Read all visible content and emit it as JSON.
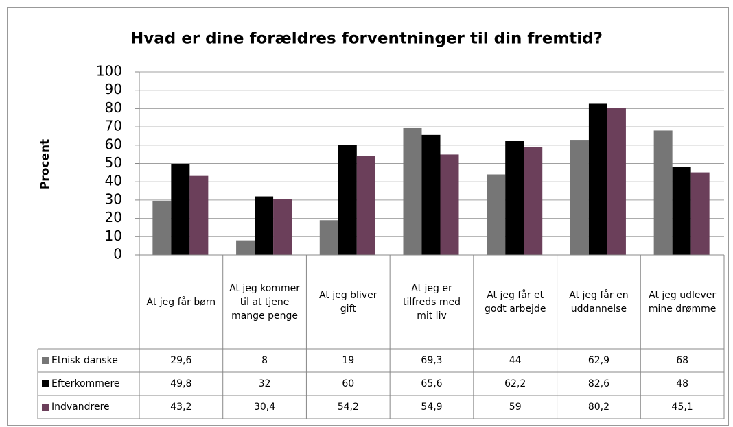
{
  "chart_data": {
    "type": "bar",
    "title": "Hvad er dine forældres forventninger til din fremtid?",
    "y_label": "Procent",
    "categories": [
      "At jeg får børn",
      "At jeg kommer til at tjene mange penge",
      "At jeg bliver gift",
      "At jeg er tilfreds med mit liv",
      "At jeg får et godt arbejde",
      "At jeg får en uddannelse",
      "At jeg udlever mine drømme"
    ],
    "series": [
      {
        "name": "Etnisk danske",
        "color": "#767676",
        "values": [
          29.6,
          8,
          19,
          69.3,
          44,
          62.9,
          68
        ],
        "value_labels": [
          "29,6",
          "8",
          "19",
          "69,3",
          "44",
          "62,9",
          "68"
        ]
      },
      {
        "name": "Efterkommere",
        "color": "#000000",
        "values": [
          49.8,
          32,
          60,
          65.6,
          62.2,
          82.6,
          48
        ],
        "value_labels": [
          "49,8",
          "32",
          "60",
          "65,6",
          "62,2",
          "82,6",
          "48"
        ]
      },
      {
        "name": "Indvandrere",
        "color": "#6b3f5a",
        "values": [
          43.2,
          30.4,
          54.2,
          54.9,
          59,
          80.2,
          45.1
        ],
        "value_labels": [
          "43,2",
          "30,4",
          "54,2",
          "54,9",
          "59",
          "80,2",
          "45,1"
        ]
      }
    ],
    "ylim": [
      0,
      100
    ],
    "yticks": [
      0,
      10,
      20,
      30,
      40,
      50,
      60,
      70,
      80,
      90,
      100
    ],
    "grid": true,
    "legend": "table"
  }
}
